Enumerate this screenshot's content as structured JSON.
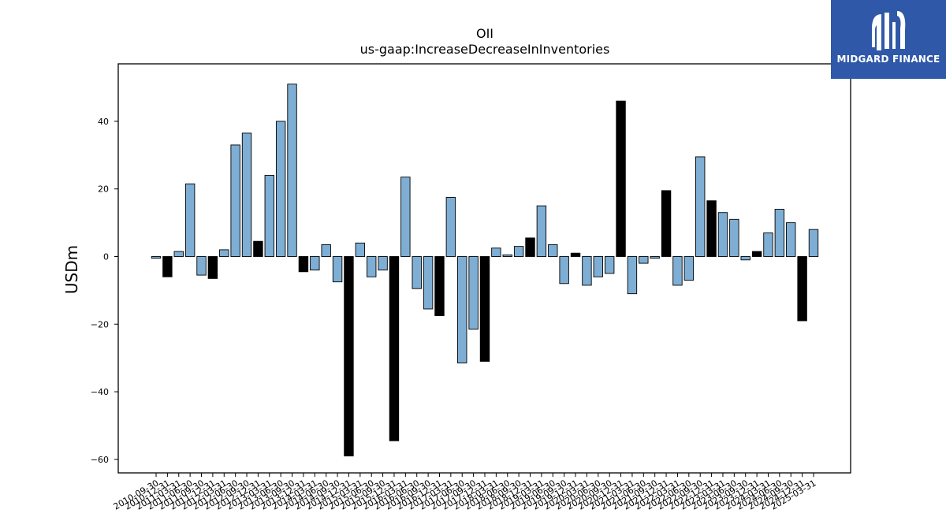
{
  "chart_data": {
    "type": "bar",
    "title": "OII",
    "subtitle": "us-gaap:IncreaseDecreaseInInventories",
    "ylabel": "USDm",
    "xlabel": "",
    "ylim": [
      -64,
      57
    ],
    "yticks": [
      -60,
      -40,
      -20,
      0,
      20,
      40
    ],
    "ytick_labels": [
      "−60",
      "−40",
      "−20",
      "0",
      "20",
      "40"
    ],
    "grid": false,
    "colors": {
      "quarter": "#7eaed3",
      "annual": "#000000",
      "edge": "#000000"
    },
    "categories": [
      "2010-09-30",
      "2010-12-31",
      "2011-03-31",
      "2011-06-30",
      "2011-09-30",
      "2011-12-31",
      "2012-03-31",
      "2012-06-30",
      "2012-09-30",
      "2012-12-31",
      "2013-03-31",
      "2013-06-30",
      "2013-09-30",
      "2013-12-31",
      "2014-03-31",
      "2014-06-30",
      "2014-09-30",
      "2014-12-31",
      "2015-03-31",
      "2015-06-30",
      "2015-09-30",
      "2015-12-31",
      "2016-03-31",
      "2016-06-30",
      "2016-09-30",
      "2016-12-31",
      "2017-03-31",
      "2017-06-30",
      "2017-09-30",
      "2017-12-31",
      "2018-03-31",
      "2018-06-30",
      "2018-09-30",
      "2018-12-31",
      "2019-03-31",
      "2019-06-30",
      "2019-09-30",
      "2019-12-31",
      "2020-03-31",
      "2020-06-30",
      "2020-09-30",
      "2020-12-31",
      "2021-03-31",
      "2021-06-30",
      "2021-09-30",
      "2021-12-31",
      "2022-03-31",
      "2022-06-30",
      "2022-09-30",
      "2022-12-31",
      "2023-03-31",
      "2023-06-30",
      "2023-09-30",
      "2023-12-31",
      "2024-03-31",
      "2024-06-30",
      "2024-09-30",
      "2024-12-31",
      "2025-03-31"
    ],
    "values": [
      -0.5,
      -6,
      1.5,
      21.5,
      -5.5,
      -6.5,
      2,
      33,
      36.5,
      4.5,
      24,
      40,
      51,
      -4.5,
      -4,
      3.5,
      -7.5,
      -59,
      4,
      -6,
      -4,
      -54.5,
      23.5,
      -9.5,
      -15.5,
      -17.5,
      17.5,
      -31.5,
      -21.5,
      -31,
      2.5,
      0.5,
      3,
      5.5,
      15,
      3.5,
      -8,
      1,
      -8.5,
      -6,
      -5,
      46,
      -11,
      -2,
      -0.5,
      19.5,
      -8.5,
      -7,
      29.5,
      16.5,
      13,
      11,
      -1,
      1.5,
      7,
      14,
      10,
      -19,
      8
    ],
    "annual": [
      false,
      true,
      false,
      false,
      false,
      true,
      false,
      false,
      false,
      true,
      false,
      false,
      false,
      true,
      false,
      false,
      false,
      true,
      false,
      false,
      false,
      true,
      false,
      false,
      false,
      true,
      false,
      false,
      false,
      true,
      false,
      false,
      false,
      true,
      false,
      false,
      false,
      true,
      false,
      false,
      false,
      true,
      false,
      false,
      false,
      true,
      false,
      false,
      false,
      true,
      false,
      false,
      false,
      true,
      false,
      false,
      false,
      true,
      false
    ]
  },
  "logo": {
    "text": "MIDGARD FINANCE"
  }
}
